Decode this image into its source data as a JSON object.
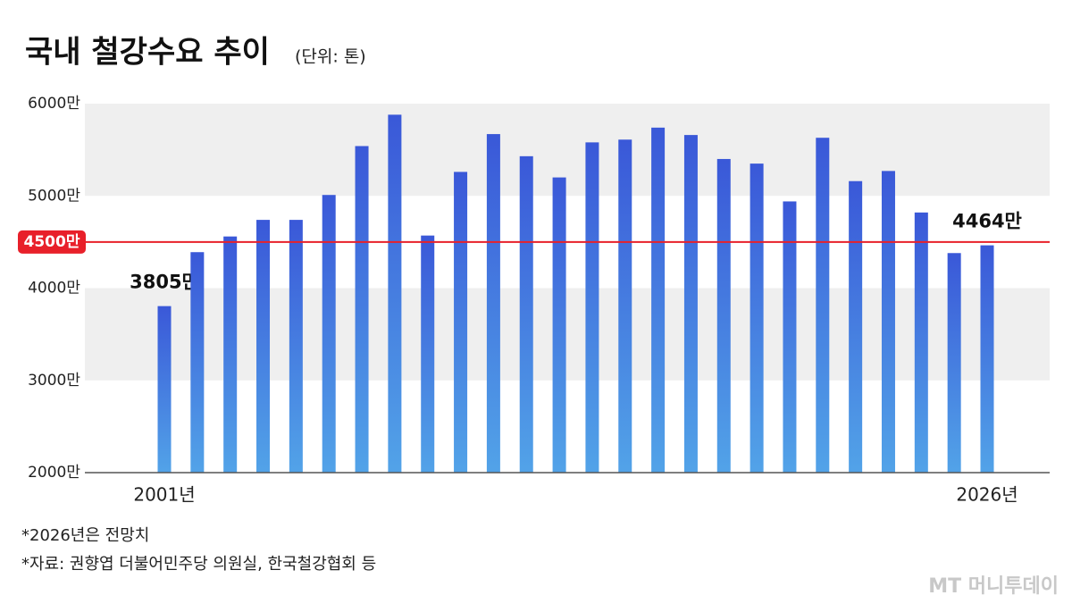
{
  "chart_data": {
    "type": "bar",
    "title": "국내 철강수요 추이",
    "subtitle": "(단위: 톤)",
    "categories": [
      "2001년",
      null,
      null,
      null,
      null,
      null,
      null,
      null,
      null,
      null,
      null,
      null,
      null,
      null,
      null,
      null,
      null,
      null,
      null,
      null,
      null,
      null,
      null,
      null,
      null,
      "2026년"
    ],
    "values": [
      3805,
      4390,
      4560,
      4740,
      4740,
      5010,
      5540,
      5880,
      4570,
      5260,
      5670,
      5430,
      5200,
      5580,
      5610,
      5740,
      5660,
      5400,
      5350,
      4940,
      5630,
      5160,
      5270,
      4820,
      4380,
      4464
    ],
    "value_labels": [
      "3805만",
      null,
      null,
      null,
      null,
      null,
      null,
      null,
      null,
      null,
      null,
      null,
      null,
      null,
      null,
      null,
      null,
      null,
      null,
      null,
      null,
      null,
      null,
      null,
      null,
      "4464만"
    ],
    "color": [
      "#3a58d8",
      "#52a3e8"
    ],
    "ylim": [
      2000,
      6000
    ],
    "yticks": [
      {
        "value": 2000,
        "label": "2000만"
      },
      {
        "value": 3000,
        "label": "3000만"
      },
      {
        "value": 4000,
        "label": "4000만"
      },
      {
        "value": 5000,
        "label": "5000만"
      },
      {
        "value": 6000,
        "label": "6000만"
      }
    ],
    "reference_line": {
      "value": 4500,
      "label": "4500만",
      "color": "#e8202a"
    },
    "notes": [
      "*2026년은 전망치",
      "*자료: 권향엽 더불어민주당 의원실, 한국철강협회 등"
    ],
    "watermark": "MT 머니투데이"
  }
}
